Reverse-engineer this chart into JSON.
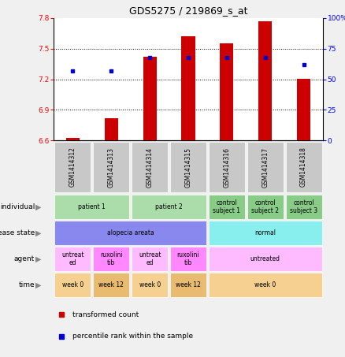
{
  "title": "GDS5275 / 219869_s_at",
  "samples": [
    "GSM1414312",
    "GSM1414313",
    "GSM1414314",
    "GSM1414315",
    "GSM1414316",
    "GSM1414317",
    "GSM1414318"
  ],
  "transformed_count": [
    6.62,
    6.82,
    7.42,
    7.62,
    7.55,
    7.77,
    7.2
  ],
  "percentile_rank": [
    57,
    57,
    68,
    68,
    68,
    68,
    62
  ],
  "ylim_left": [
    6.6,
    7.8
  ],
  "ylim_right": [
    0,
    100
  ],
  "yticks_left": [
    6.6,
    6.9,
    7.2,
    7.5,
    7.8
  ],
  "yticks_right": [
    0,
    25,
    50,
    75,
    100
  ],
  "bar_color": "#cc0000",
  "dot_color": "#0000cc",
  "bg_color": "#f0f0f0",
  "plot_bg": "#ffffff",
  "sample_box_color": "#c8c8c8",
  "rows": [
    {
      "label": "individual",
      "cells": [
        {
          "text": "patient 1",
          "colspan": 2,
          "bg": "#aaddaa"
        },
        {
          "text": "patient 2",
          "colspan": 2,
          "bg": "#aaddaa"
        },
        {
          "text": "control\nsubject 1",
          "colspan": 1,
          "bg": "#88cc88"
        },
        {
          "text": "control\nsubject 2",
          "colspan": 1,
          "bg": "#88cc88"
        },
        {
          "text": "control\nsubject 3",
          "colspan": 1,
          "bg": "#88cc88"
        }
      ]
    },
    {
      "label": "disease state",
      "cells": [
        {
          "text": "alopecia areata",
          "colspan": 4,
          "bg": "#8888ee"
        },
        {
          "text": "normal",
          "colspan": 3,
          "bg": "#88eeee"
        }
      ]
    },
    {
      "label": "agent",
      "cells": [
        {
          "text": "untreat\ned",
          "colspan": 1,
          "bg": "#ffbbff"
        },
        {
          "text": "ruxolini\ntib",
          "colspan": 1,
          "bg": "#ff88ff"
        },
        {
          "text": "untreat\ned",
          "colspan": 1,
          "bg": "#ffbbff"
        },
        {
          "text": "ruxolini\ntib",
          "colspan": 1,
          "bg": "#ff88ff"
        },
        {
          "text": "untreated",
          "colspan": 3,
          "bg": "#ffbbff"
        }
      ]
    },
    {
      "label": "time",
      "cells": [
        {
          "text": "week 0",
          "colspan": 1,
          "bg": "#f5d090"
        },
        {
          "text": "week 12",
          "colspan": 1,
          "bg": "#e8bb70"
        },
        {
          "text": "week 0",
          "colspan": 1,
          "bg": "#f5d090"
        },
        {
          "text": "week 12",
          "colspan": 1,
          "bg": "#e8bb70"
        },
        {
          "text": "week 0",
          "colspan": 3,
          "bg": "#f5d090"
        }
      ]
    }
  ]
}
